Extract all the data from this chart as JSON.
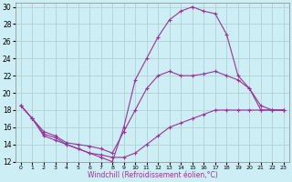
{
  "xlabel": "Windchill (Refroidissement éolien,°C)",
  "bg_color": "#cdeef5",
  "grid_color": "#aacccc",
  "line_color": "#993399",
  "xlim": [
    -0.5,
    23.5
  ],
  "ylim": [
    12,
    30.5
  ],
  "yticks": [
    12,
    14,
    16,
    18,
    20,
    22,
    24,
    26,
    28,
    30
  ],
  "xticks": [
    0,
    1,
    2,
    3,
    4,
    5,
    6,
    7,
    8,
    9,
    10,
    11,
    12,
    13,
    14,
    15,
    16,
    17,
    18,
    19,
    20,
    21,
    22,
    23
  ],
  "line1_x": [
    0,
    1,
    2,
    3,
    4,
    5,
    6,
    7,
    8,
    9,
    10,
    11,
    12,
    13,
    14,
    15,
    16,
    17,
    18,
    19,
    20,
    21,
    22,
    23
  ],
  "line1_y": [
    18.5,
    17.0,
    15.2,
    14.8,
    14.0,
    13.5,
    13.0,
    12.8,
    12.5,
    12.5,
    13.0,
    14.0,
    15.0,
    16.0,
    16.5,
    17.0,
    17.5,
    18.0,
    18.0,
    18.0,
    18.0,
    18.0,
    18.0,
    18.0
  ],
  "line2_x": [
    0,
    1,
    2,
    3,
    4,
    5,
    6,
    7,
    8,
    9,
    10,
    11,
    12,
    13,
    14,
    15,
    16,
    17,
    18,
    19,
    20,
    21,
    22,
    23
  ],
  "line2_y": [
    18.5,
    17.0,
    15.5,
    15.0,
    14.2,
    14.0,
    13.8,
    13.5,
    13.0,
    15.5,
    18.0,
    20.5,
    22.0,
    22.5,
    22.0,
    22.0,
    22.2,
    22.5,
    22.0,
    21.5,
    20.5,
    18.5,
    18.0,
    18.0
  ],
  "line3_x": [
    0,
    1,
    2,
    3,
    4,
    5,
    6,
    7,
    8,
    9,
    10,
    11,
    12,
    13,
    14,
    15,
    16,
    17,
    18,
    19,
    20,
    21,
    22,
    23
  ],
  "line3_y": [
    18.5,
    17.0,
    15.0,
    14.5,
    14.0,
    13.5,
    13.0,
    12.5,
    12.0,
    16.0,
    21.5,
    24.0,
    26.5,
    28.5,
    29.5,
    30.0,
    29.5,
    29.2,
    26.8,
    22.0,
    20.5,
    18.0,
    18.0,
    18.0
  ]
}
